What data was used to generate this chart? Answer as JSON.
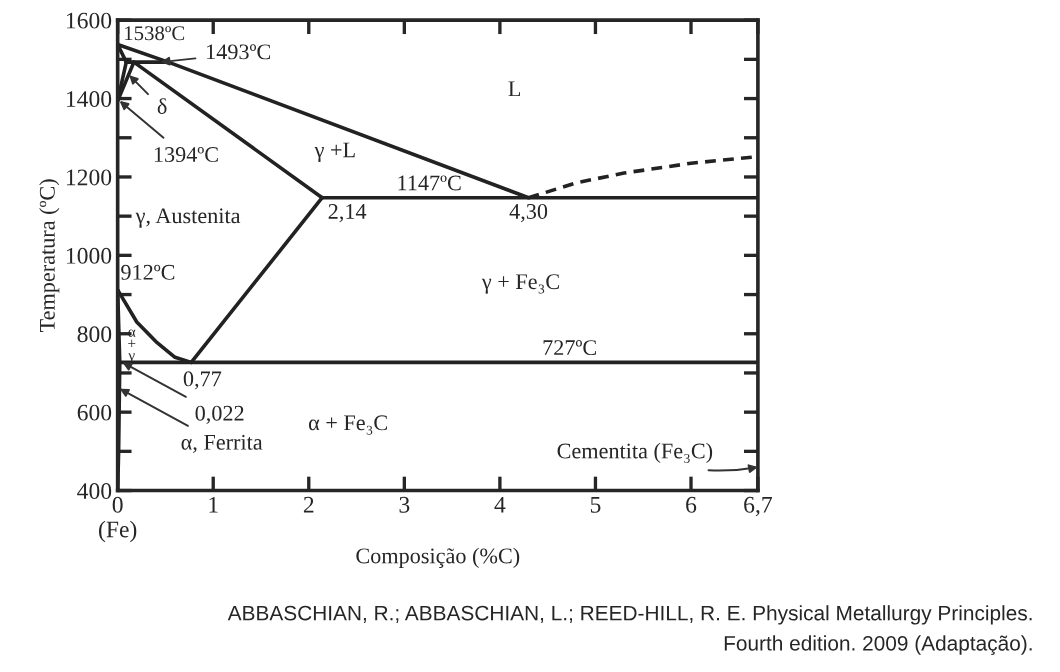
{
  "chart_data": {
    "type": "line",
    "xlabel": "Composição (%C)",
    "ylabel": "Temperatura (ºC)",
    "xlim": [
      0,
      6.7
    ],
    "ylim": [
      400,
      1600
    ],
    "xticks": [
      {
        "value": 0,
        "label": "0\n(Fe)"
      },
      1,
      2,
      3,
      4,
      5,
      6,
      {
        "value": 6.7,
        "label": "6,7"
      }
    ],
    "yticks": [
      400,
      {
        "value": 500,
        "label": null
      },
      600,
      {
        "value": 700,
        "label": null
      },
      800,
      {
        "value": 900,
        "label": null
      },
      1000,
      {
        "value": 1100,
        "label": null
      },
      1200,
      {
        "value": 1300,
        "label": null
      },
      1400,
      {
        "value": 1500,
        "label": null
      },
      1600
    ],
    "grid": false,
    "legend": false,
    "series": [
      {
        "color": "#222222",
        "x": [
          0,
          0.53,
          4.3
        ],
        "values": [
          1538,
          1493,
          1147
        ]
      },
      {
        "color": "#222222",
        "line_style": "dashed",
        "x": [
          4.3,
          4.8,
          5.3,
          6.0,
          6.7
        ],
        "values": [
          1147,
          1185,
          1210,
          1235,
          1252
        ]
      },
      {
        "color": "#222222",
        "x": [
          0.17,
          2.14
        ],
        "values": [
          1493,
          1147
        ]
      },
      {
        "color": "#222222",
        "x": [
          0.09,
          0.53
        ],
        "values": [
          1493,
          1493
        ]
      },
      {
        "color": "#222222",
        "x": [
          0,
          0.09
        ],
        "values": [
          1538,
          1493
        ]
      },
      {
        "color": "#222222",
        "x": [
          0,
          0.09
        ],
        "values": [
          1394,
          1493
        ]
      },
      {
        "color": "#222222",
        "x": [
          0,
          0.17
        ],
        "values": [
          1394,
          1493
        ]
      },
      {
        "color": "#222222",
        "x": [
          2.14,
          6.7
        ],
        "values": [
          1147,
          1147
        ]
      },
      {
        "color": "#222222",
        "x": [
          0.77,
          2.14
        ],
        "values": [
          727,
          1147
        ]
      },
      {
        "color": "#222222",
        "x": [
          0,
          0.2,
          0.4,
          0.6,
          0.77
        ],
        "values": [
          912,
          830,
          780,
          740,
          727
        ]
      },
      {
        "color": "#222222",
        "x": [
          0.022,
          6.7
        ],
        "values": [
          727,
          727
        ]
      },
      {
        "color": "#222222",
        "x": [
          0,
          0.022,
          0.01,
          0
        ],
        "values": [
          912,
          727,
          500,
          400
        ]
      }
    ],
    "annotations": [
      {
        "text": "1538ºC",
        "x": 0,
        "y": 1538
      },
      {
        "text": "1493ºC",
        "x": 0.45,
        "y": 1493
      },
      {
        "text": "δ",
        "x": 0.12,
        "y": 1460
      },
      {
        "text": "1394ºC",
        "x": 0.02,
        "y": 1394
      },
      "γ +L",
      "L",
      "γ, Austenita",
      {
        "text": "2,14",
        "x": 2.14,
        "y": 1147
      },
      {
        "text": "1147ºC",
        "x": 3.26,
        "y": 1147
      },
      {
        "text": "4,30",
        "x": 4.3,
        "y": 1147
      },
      "γ + Fe₃C",
      {
        "text": "727ºC",
        "x": 4.73,
        "y": 727
      },
      {
        "text": "912ºC",
        "x": 0,
        "y": 912
      },
      "α\n+\nγ",
      {
        "text": "0,77",
        "x": 0.77,
        "y": 727
      },
      {
        "text": "0,022",
        "x": 0.05,
        "y": 727
      },
      {
        "text": "α, Ferrita",
        "x": 0.02,
        "y": 660
      },
      "α + Fe₃C",
      "Cementita (Fe₃C)",
      "ABBASCHIAN, R.; ABBASCHIAN, L.; REED-HILL, R. E. Physical Metallurgy Principles.",
      "Fourth edition. 2009 (Adaptação)."
    ]
  }
}
